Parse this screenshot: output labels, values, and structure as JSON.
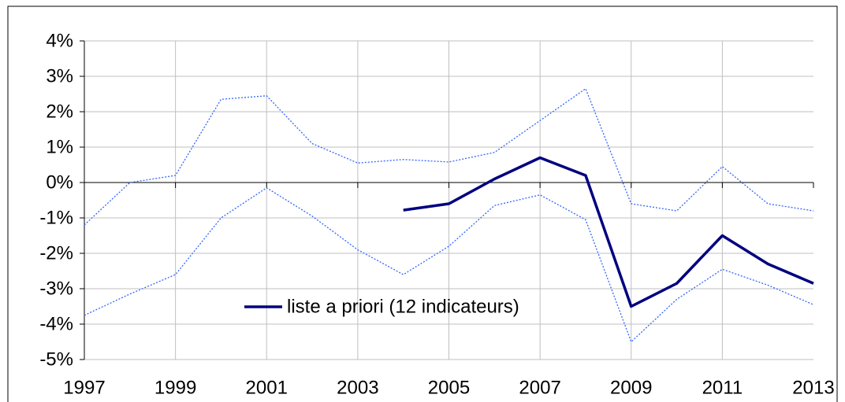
{
  "chart_data": {
    "type": "line",
    "x": [
      1997,
      1998,
      1999,
      2000,
      2001,
      2002,
      2003,
      2004,
      2005,
      2006,
      2007,
      2008,
      2009,
      2010,
      2011,
      2012,
      2013
    ],
    "series": [
      {
        "values": [
          -1.2,
          0.0,
          0.2,
          2.35,
          2.45,
          1.1,
          0.55,
          0.65,
          0.58,
          0.85,
          1.75,
          2.65,
          -0.6,
          -0.8,
          0.45,
          -0.6,
          -0.8
        ],
        "color": "#3366ff",
        "dash": true
      },
      {
        "values": [
          -3.75,
          -3.15,
          -2.6,
          -1.0,
          -0.15,
          -0.95,
          -1.9,
          -2.6,
          -1.8,
          -0.65,
          -0.35,
          -1.05,
          -4.5,
          -3.3,
          -2.45,
          -2.9,
          -3.45
        ],
        "color": "#3366ff",
        "dash": true
      },
      {
        "name": "liste a priori (12 indicateurs)",
        "values": [
          null,
          null,
          null,
          null,
          null,
          null,
          null,
          -0.78,
          -0.6,
          0.1,
          0.7,
          0.2,
          -3.5,
          -2.85,
          -1.5,
          -2.3,
          -2.85
        ],
        "color": "#000080",
        "dash": false
      }
    ],
    "xlim": [
      1997,
      2013
    ],
    "xticks": [
      1997,
      1999,
      2001,
      2003,
      2005,
      2007,
      2009,
      2011,
      2013
    ],
    "ylim": [
      -5,
      4
    ],
    "yticks": [
      {
        "value": -5,
        "label": "-5%"
      },
      {
        "value": -4,
        "label": "-4%"
      },
      {
        "value": -3,
        "label": "-3%"
      },
      {
        "value": -2,
        "label": "-2%"
      },
      {
        "value": -1,
        "label": "-1%"
      },
      {
        "value": 0,
        "label": "0%"
      },
      {
        "value": 1,
        "label": "1%"
      },
      {
        "value": 2,
        "label": "2%"
      },
      {
        "value": 3,
        "label": "3%"
      },
      {
        "value": 4,
        "label": "4%"
      }
    ],
    "grid": true
  }
}
